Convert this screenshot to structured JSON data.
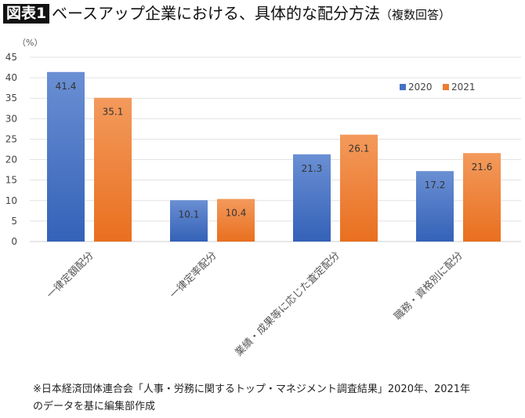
{
  "badge": "図表1",
  "title": "ベースアップ企業における、具体的な配分方法",
  "title_note": "（複数回答）",
  "footnote_line1": "※日本経済団体連合会「人事・労務に関するトップ・マネジメント調査結果」2020年、2021年",
  "footnote_line2": "のデータを基に編集部作成",
  "chart_data": {
    "type": "bar",
    "title": "ベースアップ企業における、具体的な配分方法（複数回答）",
    "ylabel": "（%）",
    "ylim": [
      0,
      45
    ],
    "yticks": [
      0,
      5,
      10,
      15,
      20,
      25,
      30,
      35,
      40,
      45
    ],
    "grid": true,
    "legend": "top-right",
    "categories": [
      "一律定額配分",
      "一律定率配分",
      "業績・成果等に応じた査定配分",
      "職務・資格別に配分"
    ],
    "series": [
      {
        "name": "2020",
        "values": [
          41.4,
          10.1,
          21.3,
          17.2
        ],
        "color": "#4472c4"
      },
      {
        "name": "2021",
        "values": [
          35.1,
          10.4,
          26.1,
          21.6
        ],
        "color": "#ed7d31"
      }
    ]
  }
}
